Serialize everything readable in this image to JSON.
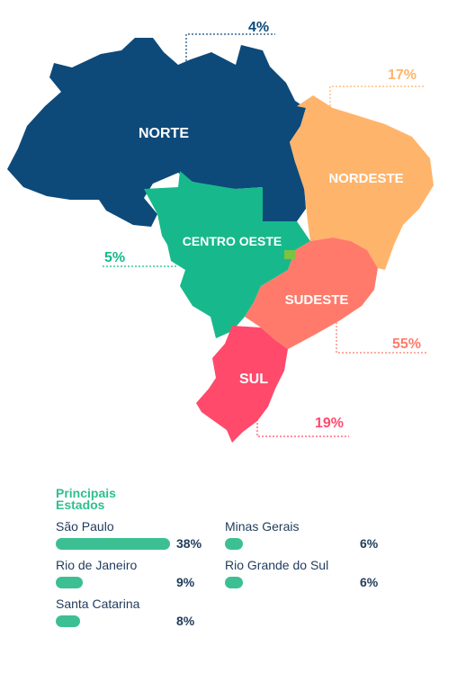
{
  "colors": {
    "norte": "#0d4a7a",
    "nordeste": "#ffb46b",
    "centro_oeste": "#17b98c",
    "sudeste": "#ff7a6a",
    "sul": "#ff4a6b",
    "text_dark": "#1f3b5b",
    "legend_bar": "#3cbf93",
    "legend_title": "#2fbf8f"
  },
  "regions": {
    "norte": {
      "label": "NORTE",
      "percent": "4%"
    },
    "nordeste": {
      "label": "NORDESTE",
      "percent": "17%"
    },
    "centro_oeste": {
      "label": "CENTRO OESTE",
      "percent": "5%"
    },
    "sudeste": {
      "label": "SUDESTE",
      "percent": "55%"
    },
    "sul": {
      "label": "SUL",
      "percent": "19%"
    }
  },
  "legend": {
    "title_line1": "Principais",
    "title_line2": "Estados",
    "states": [
      {
        "name": "São Paulo",
        "value": "38%",
        "share": 0.38
      },
      {
        "name": "Rio de Janeiro",
        "value": "9%",
        "share": 0.09
      },
      {
        "name": "Santa Catarina",
        "value": "8%",
        "share": 0.08
      },
      {
        "name": "Minas Gerais",
        "value": "6%",
        "share": 0.06
      },
      {
        "name": "Rio Grande do Sul",
        "value": "6%",
        "share": 0.06
      }
    ]
  }
}
